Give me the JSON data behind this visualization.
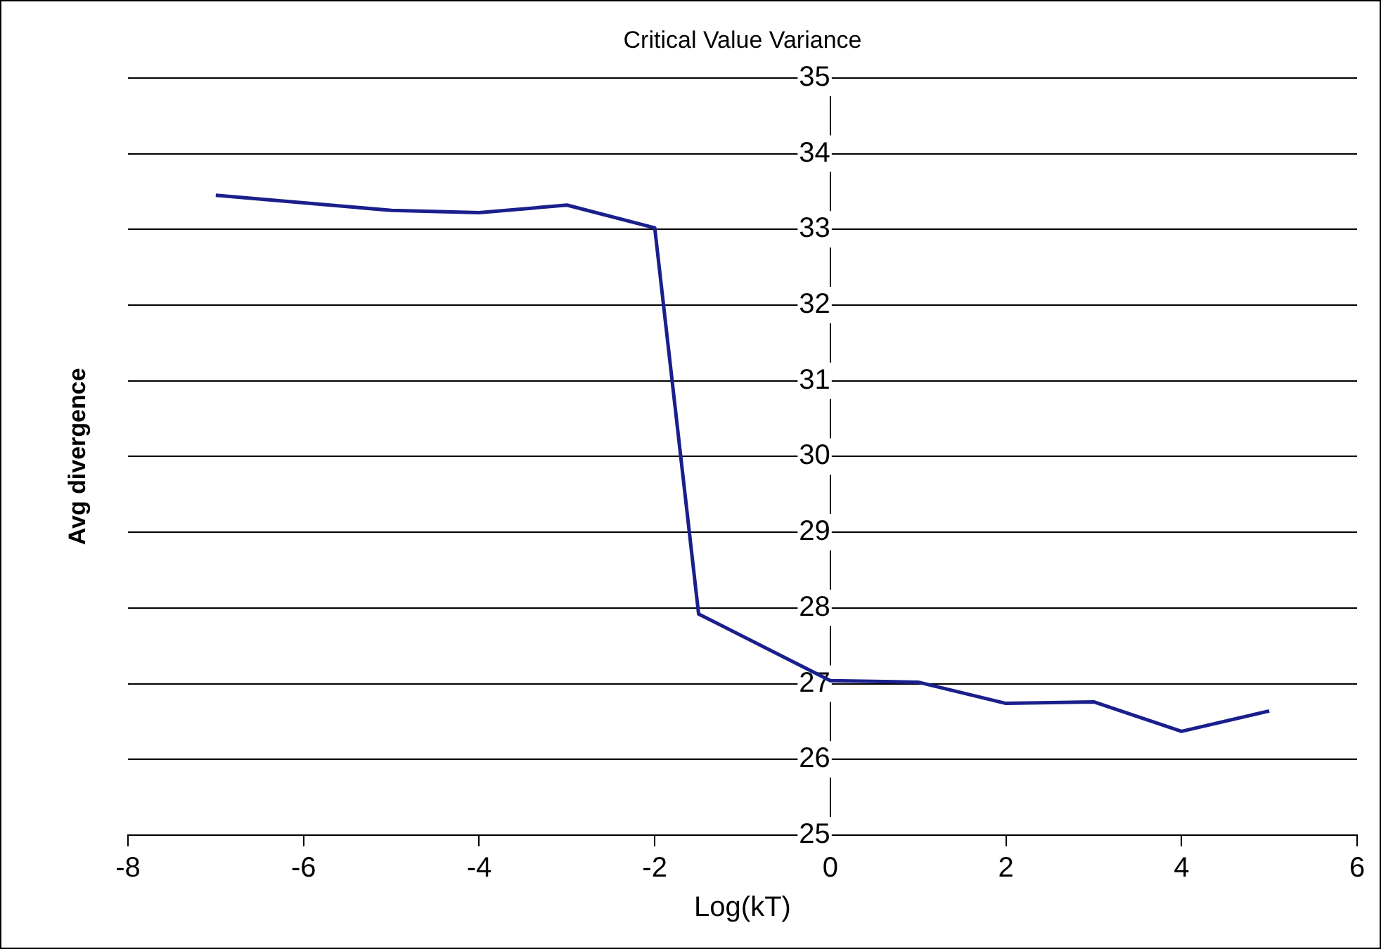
{
  "chart_data": {
    "type": "line",
    "title": "Critical Value Variance",
    "xlabel": "Log(kT)",
    "ylabel": "Avg divergence",
    "x": [
      -7,
      -5,
      -4,
      -3,
      -2,
      -1.5,
      0,
      1,
      2,
      3,
      4,
      5
    ],
    "series": [
      {
        "color": "#1a1f8c",
        "values": [
          33.45,
          33.25,
          33.22,
          33.32,
          33.02,
          27.92,
          27.04,
          27.02,
          26.74,
          26.76,
          26.37,
          26.64
        ]
      }
    ],
    "xlim": [
      -8,
      6
    ],
    "xticks": [
      -8,
      -6,
      -4,
      -2,
      0,
      2,
      4,
      6
    ],
    "ylim": [
      25,
      35
    ],
    "yticks": [
      25,
      26,
      27,
      28,
      29,
      30,
      31,
      32,
      33,
      34,
      35
    ],
    "grid": "y",
    "legend": false,
    "marker": "none",
    "line_style": "solid"
  }
}
